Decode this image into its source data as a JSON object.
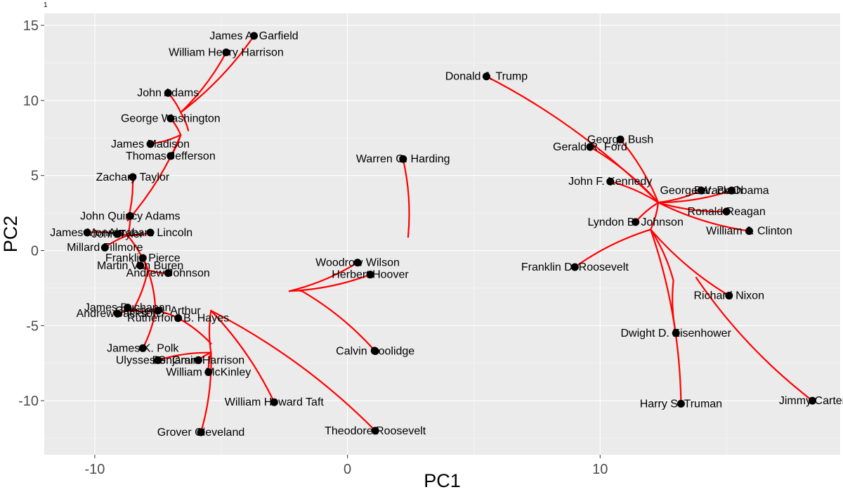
{
  "corner_label": "1",
  "chart_data": {
    "type": "scatter",
    "title": "",
    "xlabel": "PC1",
    "ylabel": "PC2",
    "xlim": [
      -12.0,
      19.5
    ],
    "ylim": [
      -13.6,
      15.8
    ],
    "x_ticks": [
      -10,
      0,
      10
    ],
    "y_ticks": [
      15,
      10,
      5,
      0,
      -5,
      -10
    ],
    "grid": true,
    "legend": "none",
    "colors": {
      "panel": "#ebebeb",
      "grid_major": "#ffffff",
      "grid_minor": "#f7f7f7",
      "point": "#000000",
      "tree": "#ff0000",
      "tick_text": "#4d4d4d"
    },
    "points": [
      {
        "label": "James A. Garfield",
        "x": -3.7,
        "y": 14.3
      },
      {
        "label": "William Henry Harrison",
        "x": -4.8,
        "y": 13.2
      },
      {
        "label": "John Adams",
        "x": -7.1,
        "y": 10.5
      },
      {
        "label": "George Washington",
        "x": -7.0,
        "y": 8.8
      },
      {
        "label": "James Madison",
        "x": -7.8,
        "y": 7.1
      },
      {
        "label": "Thomas Jefferson",
        "x": -7.0,
        "y": 6.3
      },
      {
        "label": "Zachary Taylor",
        "x": -8.5,
        "y": 4.9
      },
      {
        "label": "John Quincy Adams",
        "x": -8.6,
        "y": 2.3
      },
      {
        "label": "James Monroe",
        "x": -10.3,
        "y": 1.2
      },
      {
        "label": "John Tyler",
        "x": -9.1,
        "y": 1.1
      },
      {
        "label": "Abraham Lincoln",
        "x": -7.8,
        "y": 1.2
      },
      {
        "label": "Millard Fillmore",
        "x": -9.6,
        "y": 0.2
      },
      {
        "label": "Franklin Pierce",
        "x": -8.1,
        "y": -0.5
      },
      {
        "label": "Martin Van Buren",
        "x": -8.2,
        "y": -1.0
      },
      {
        "label": "Andrew Johnson",
        "x": -7.1,
        "y": -1.5
      },
      {
        "label": "James Buchanan",
        "x": -8.7,
        "y": -3.8
      },
      {
        "label": "Andrew Jackson",
        "x": -9.1,
        "y": -4.2
      },
      {
        "label": "Chester A. Arthur",
        "x": -7.5,
        "y": -4.0
      },
      {
        "label": "Rutherford B. Hayes",
        "x": -6.7,
        "y": -4.5
      },
      {
        "label": "James K. Polk",
        "x": -8.1,
        "y": -6.5
      },
      {
        "label": "Ulysses S. Grant",
        "x": -7.5,
        "y": -7.3
      },
      {
        "label": "Benjamin Harrison",
        "x": -5.9,
        "y": -7.3
      },
      {
        "label": "William McKinley",
        "x": -5.5,
        "y": -8.1
      },
      {
        "label": "William Howard Taft",
        "x": -2.9,
        "y": -10.1
      },
      {
        "label": "Grover Cleveland",
        "x": -5.8,
        "y": -12.1
      },
      {
        "label": "Woodrow Wilson",
        "x": 0.4,
        "y": -0.8
      },
      {
        "label": "Herbert Hoover",
        "x": 0.9,
        "y": -1.6
      },
      {
        "label": "Calvin Coolidge",
        "x": 1.1,
        "y": -6.7
      },
      {
        "label": "Theodore Roosevelt",
        "x": 1.1,
        "y": -12.0
      },
      {
        "label": "Warren G. Harding",
        "x": 2.2,
        "y": 6.1
      },
      {
        "label": "Donald J. Trump",
        "x": 5.5,
        "y": 11.6
      },
      {
        "label": "George Bush",
        "x": 10.8,
        "y": 7.4
      },
      {
        "label": "Gerald R. Ford",
        "x": 9.6,
        "y": 6.9
      },
      {
        "label": "John F. Kennedy",
        "x": 10.4,
        "y": 4.6
      },
      {
        "label": "George W. Bush",
        "x": 14.0,
        "y": 4.0
      },
      {
        "label": "Barack Obama",
        "x": 15.2,
        "y": 4.0
      },
      {
        "label": "Ronald Reagan",
        "x": 15.0,
        "y": 2.6
      },
      {
        "label": "William J. Clinton",
        "x": 15.9,
        "y": 1.3
      },
      {
        "label": "Lyndon B. Johnson",
        "x": 11.4,
        "y": 1.9
      },
      {
        "label": "Franklin D. Roosevelt",
        "x": 9.0,
        "y": -1.1
      },
      {
        "label": "Richard Nixon",
        "x": 15.1,
        "y": -3.0
      },
      {
        "label": "Dwight D. Eisenhower",
        "x": 13.0,
        "y": -5.5
      },
      {
        "label": "Harry S. Truman",
        "x": 13.2,
        "y": -10.2
      },
      {
        "label": "Jimmy Carter",
        "x": 18.4,
        "y": -10.0
      }
    ],
    "tree_links": [
      {
        "from": [
          -3.7,
          14.3
        ],
        "to": [
          -6.6,
          9.2
        ]
      },
      {
        "from": [
          -4.8,
          13.2
        ],
        "to": [
          -6.6,
          9.2
        ]
      },
      {
        "from": [
          -7.1,
          10.5
        ],
        "to": [
          -6.6,
          9.2
        ]
      },
      {
        "from": [
          -6.6,
          9.2
        ],
        "to": [
          -6.3,
          8.0
        ]
      },
      {
        "from": [
          -7.0,
          8.8
        ],
        "to": [
          -6.6,
          7.7
        ]
      },
      {
        "from": [
          -6.6,
          7.7
        ],
        "to": [
          -7.8,
          7.1
        ]
      },
      {
        "from": [
          -6.6,
          7.7
        ],
        "to": [
          -7.0,
          6.3
        ]
      },
      {
        "from": [
          -6.6,
          7.7
        ],
        "to": [
          -8.7,
          2.0
        ]
      },
      {
        "from": [
          -8.5,
          4.9
        ],
        "to": [
          -8.7,
          2.0
        ]
      },
      {
        "from": [
          -8.6,
          2.3
        ],
        "to": [
          -8.7,
          1.0
        ]
      },
      {
        "from": [
          -10.3,
          1.2
        ],
        "to": [
          -8.7,
          1.0
        ]
      },
      {
        "from": [
          -9.1,
          1.1
        ],
        "to": [
          -8.7,
          1.0
        ]
      },
      {
        "from": [
          -7.8,
          1.2
        ],
        "to": [
          -8.7,
          1.0
        ]
      },
      {
        "from": [
          -9.6,
          0.2
        ],
        "to": [
          -8.7,
          1.0
        ]
      },
      {
        "from": [
          -8.7,
          1.0
        ],
        "to": [
          -7.9,
          -1.3
        ]
      },
      {
        "from": [
          -8.1,
          -0.5
        ],
        "to": [
          -7.9,
          -1.3
        ]
      },
      {
        "from": [
          -8.2,
          -1.0
        ],
        "to": [
          -7.9,
          -1.3
        ]
      },
      {
        "from": [
          -7.1,
          -1.5
        ],
        "to": [
          -7.9,
          -1.3
        ]
      },
      {
        "from": [
          -7.9,
          -1.3
        ],
        "to": [
          -8.5,
          -4.0
        ]
      },
      {
        "from": [
          -8.7,
          -3.8
        ],
        "to": [
          -8.5,
          -4.0
        ]
      },
      {
        "from": [
          -9.1,
          -4.2
        ],
        "to": [
          -8.5,
          -4.0
        ]
      },
      {
        "from": [
          -7.5,
          -4.0
        ],
        "to": [
          -8.5,
          -4.0
        ]
      },
      {
        "from": [
          -7.9,
          -1.3
        ],
        "to": [
          -7.6,
          -4.0
        ]
      },
      {
        "from": [
          -7.6,
          -4.0
        ],
        "to": [
          -8.1,
          -6.5
        ]
      },
      {
        "from": [
          -7.6,
          -4.0
        ],
        "to": [
          -6.7,
          -4.5
        ]
      },
      {
        "from": [
          -6.7,
          -4.5
        ],
        "to": [
          -5.4,
          -6.2
        ]
      },
      {
        "from": [
          -7.5,
          -7.3
        ],
        "to": [
          -5.4,
          -6.8
        ]
      },
      {
        "from": [
          -5.9,
          -7.3
        ],
        "to": [
          -5.4,
          -6.8
        ]
      },
      {
        "from": [
          -5.5,
          -8.1
        ],
        "to": [
          -5.4,
          -6.8
        ]
      },
      {
        "from": [
          -5.4,
          -6.8
        ],
        "to": [
          -5.4,
          -4.0
        ]
      },
      {
        "from": [
          -5.4,
          -4.0
        ],
        "to": [
          -2.9,
          -10.1
        ]
      },
      {
        "from": [
          -5.4,
          -4.0
        ],
        "to": [
          1.1,
          -12.0
        ]
      },
      {
        "from": [
          -5.4,
          -6.8
        ],
        "to": [
          -5.8,
          -12.1
        ]
      },
      {
        "from": [
          0.4,
          -0.8
        ],
        "to": [
          -2.3,
          -2.7
        ]
      },
      {
        "from": [
          0.9,
          -1.6
        ],
        "to": [
          -2.3,
          -2.7
        ]
      },
      {
        "from": [
          -2.3,
          -2.7
        ],
        "to": [
          -1.8,
          -2.7
        ]
      },
      {
        "from": [
          -1.8,
          -2.7
        ],
        "to": [
          1.1,
          -6.7
        ]
      },
      {
        "from": [
          2.2,
          6.1
        ],
        "to": [
          2.4,
          0.9
        ]
      },
      {
        "from": [
          5.5,
          11.6
        ],
        "to": [
          12.3,
          3.2
        ]
      },
      {
        "from": [
          10.8,
          7.4
        ],
        "to": [
          12.3,
          3.2
        ]
      },
      {
        "from": [
          9.6,
          6.9
        ],
        "to": [
          12.3,
          3.2
        ]
      },
      {
        "from": [
          10.4,
          4.6
        ],
        "to": [
          12.3,
          3.2
        ]
      },
      {
        "from": [
          14.0,
          4.0
        ],
        "to": [
          12.3,
          3.2
        ]
      },
      {
        "from": [
          15.2,
          4.0
        ],
        "to": [
          12.3,
          3.2
        ]
      },
      {
        "from": [
          15.0,
          2.6
        ],
        "to": [
          12.3,
          3.2
        ]
      },
      {
        "from": [
          15.9,
          1.3
        ],
        "to": [
          12.3,
          3.2
        ]
      },
      {
        "from": [
          11.4,
          1.9
        ],
        "to": [
          12.3,
          3.2
        ]
      },
      {
        "from": [
          12.3,
          3.2
        ],
        "to": [
          12.0,
          1.4
        ]
      },
      {
        "from": [
          9.0,
          -1.1
        ],
        "to": [
          12.0,
          1.4
        ]
      },
      {
        "from": [
          15.1,
          -3.0
        ],
        "to": [
          12.0,
          1.4
        ]
      },
      {
        "from": [
          12.0,
          1.4
        ],
        "to": [
          12.9,
          -2.0
        ]
      },
      {
        "from": [
          13.0,
          -5.5
        ],
        "to": [
          12.9,
          -2.0
        ]
      },
      {
        "from": [
          12.0,
          1.4
        ],
        "to": [
          13.2,
          -10.2
        ]
      },
      {
        "from": [
          18.4,
          -10.0
        ],
        "to": [
          13.8,
          -1.8
        ]
      }
    ]
  }
}
